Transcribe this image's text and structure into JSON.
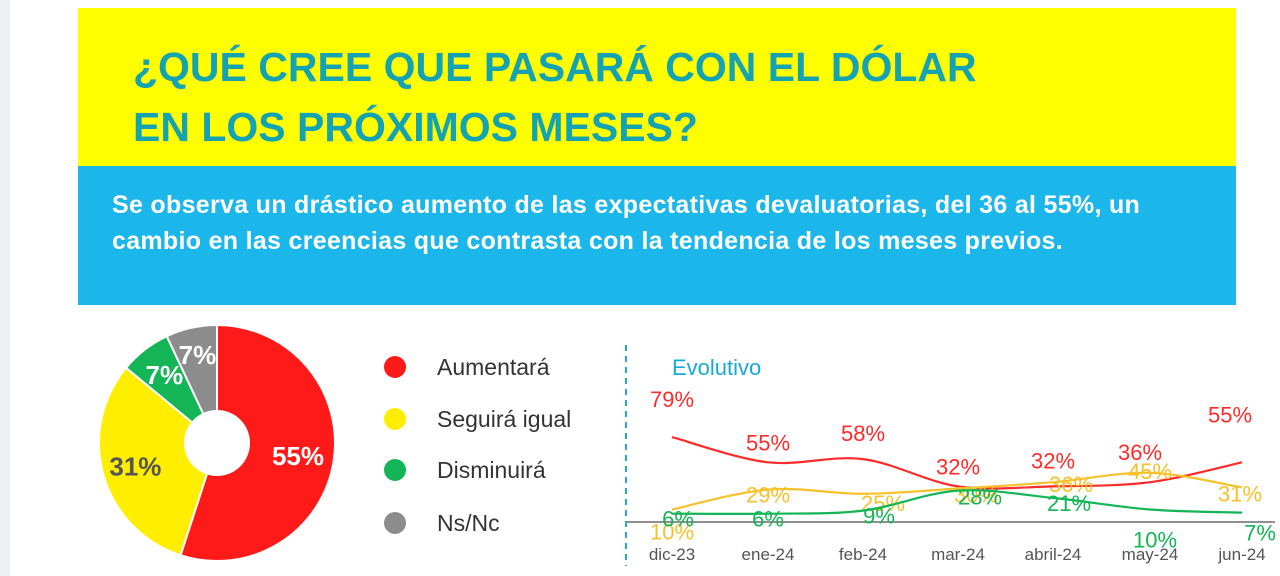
{
  "title": {
    "line1": "¿QUÉ CREE QUE PASARÁ CON EL DÓLAR",
    "line2": "EN LOS PRÓXIMOS MESES?"
  },
  "subtitle": "Se observa un drástico aumento de las expectativas devaluatorias, del 36 al 55%, un cambio en las creencias que contrasta con la tendencia de los meses previos.",
  "colors": {
    "title_band": "#ffff00",
    "title_text": "#14a3b3",
    "subtitle_band": "#1cb7ea",
    "aumentara": "#ff1a1a",
    "seguira": "#ffee00",
    "disminuira": "#13b556",
    "nsnc": "#8c8c8c"
  },
  "chart_data": [
    {
      "type": "pie",
      "categories": [
        "Aumentará",
        "Seguirá igual",
        "Disminuirá",
        "Ns/Nc"
      ],
      "values": [
        55,
        31,
        7,
        7
      ],
      "labels": [
        "55%",
        "31%",
        "7%",
        "7%"
      ],
      "colors": [
        "#ff1a1a",
        "#ffee00",
        "#13b556",
        "#8c8c8c"
      ],
      "donut_hole": true,
      "legend": {
        "placement": "right",
        "items": [
          "Aumentará",
          "Seguirá igual",
          "Disminuirá",
          "Ns/Nc"
        ]
      }
    },
    {
      "type": "line",
      "title": "Evolutivo",
      "categories": [
        "dic-23",
        "ene-24",
        "feb-24",
        "mar-24",
        "abril-24",
        "may-24",
        "jun-24"
      ],
      "series": [
        {
          "name": "Aumentará",
          "color": "#ff2b2b",
          "values": [
            79,
            55,
            58,
            32,
            32,
            36,
            55
          ],
          "labels": [
            "79%",
            "55%",
            "58%",
            "32%",
            "32%",
            "36%",
            "55%"
          ]
        },
        {
          "name": "Seguirá igual",
          "color": "#f6c12b",
          "values": [
            10,
            29,
            25,
            30,
            36,
            45,
            31
          ],
          "labels": [
            "10%",
            "29%",
            "25%",
            "30%",
            "36%",
            "45%",
            "31%"
          ]
        },
        {
          "name": "Disminuirá",
          "color": "#13b556",
          "values": [
            6,
            6,
            9,
            28,
            21,
            10,
            7
          ],
          "labels": [
            "6%",
            "6%",
            "9%",
            "28%",
            "21%",
            "10%",
            "7%"
          ]
        }
      ],
      "grid": false,
      "y_axis": false
    }
  ]
}
